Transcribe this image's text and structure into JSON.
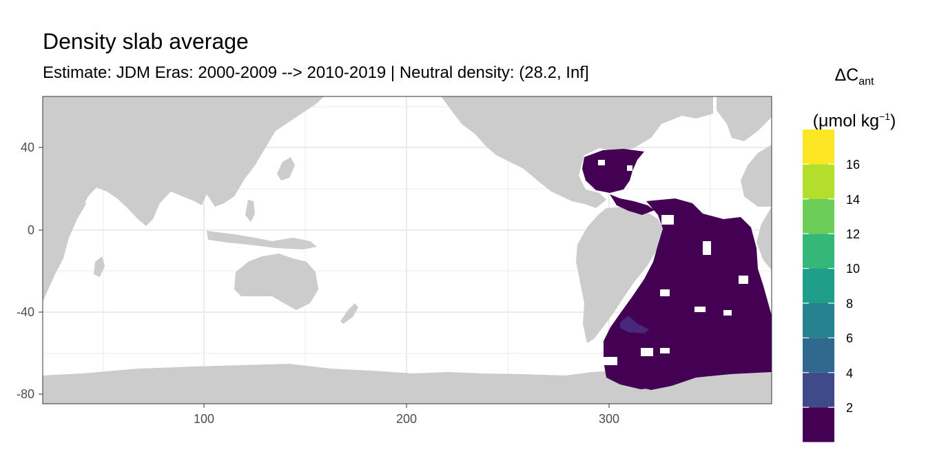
{
  "title": "Density slab average",
  "subtitle": "Estimate: JDM Eras: 2000-2009 --> 2010-2019 | Neutral density: (28.2, Inf]",
  "legend": {
    "title_main": "ΔC",
    "title_sub": "ant",
    "unit_prefix": "(μmol kg",
    "unit_sup": "−1",
    "unit_suffix": ")",
    "breaks": [
      "2",
      "4",
      "6",
      "8",
      "10",
      "12",
      "14",
      "16"
    ],
    "colors": [
      "#440154",
      "#482878",
      "#3E4A89",
      "#31688E",
      "#26828E",
      "#1F9E89",
      "#35B779",
      "#6DCD59",
      "#B4DE2C",
      "#FDE725"
    ]
  },
  "axes": {
    "x_ticks": [
      "100",
      "200",
      "300"
    ],
    "y_ticks": [
      "40",
      "0",
      "-40",
      "-80"
    ]
  },
  "chart_data": {
    "type": "heatmap",
    "title": "Density slab average",
    "subtitle": "Estimate: JDM Eras: 2000-2009 --> 2010-2019 | Neutral density: (28.2, Inf]",
    "xlabel": "",
    "ylabel": "",
    "xlim": [
      20,
      380
    ],
    "ylim": [
      -85,
      65
    ],
    "x_ticks": [
      100,
      200,
      300
    ],
    "y_ticks": [
      40,
      0,
      -40,
      -80
    ],
    "legend_title": "ΔCant (μmol kg−1)",
    "color_scale": "viridis",
    "legend_breaks": [
      2,
      4,
      6,
      8,
      10,
      12,
      14,
      16
    ],
    "legend_range": [
      0,
      18
    ],
    "dominant_value_range": [
      0,
      2
    ],
    "max_visible_value_range": [
      2,
      4
    ],
    "coverage": "Atlantic Ocean and Atlantic sector of the Southern Ocean",
    "land_color": "#cccccc",
    "grid": true
  }
}
